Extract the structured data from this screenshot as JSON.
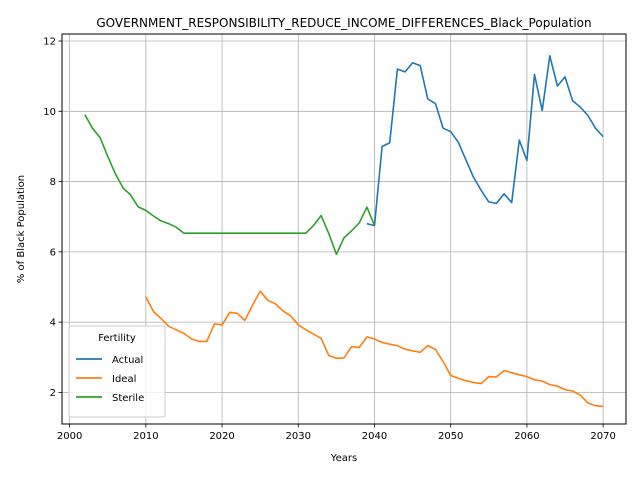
{
  "chart_data": {
    "type": "line",
    "title": "GOVERNMENT_RESPONSIBILITY_REDUCE_INCOME_DIFFERENCES_Black_Population",
    "xlabel": "Years",
    "ylabel": "% of Black Population",
    "xlim": [
      1999,
      2073
    ],
    "ylim": [
      1.1,
      12.2
    ],
    "xticks": [
      2000,
      2010,
      2020,
      2030,
      2040,
      2050,
      2060,
      2070
    ],
    "yticks": [
      2,
      4,
      6,
      8,
      10,
      12
    ],
    "grid": true,
    "legend_title": "Fertility",
    "legend_position": "lower-left",
    "series": [
      {
        "name": "Actual",
        "color": "#1f77b4",
        "x": [
          2039,
          2040,
          2041,
          2042,
          2043,
          2044,
          2045,
          2046,
          2047,
          2048,
          2049,
          2050,
          2051,
          2052,
          2053,
          2054,
          2055,
          2056,
          2057,
          2058,
          2059,
          2060,
          2061,
          2062,
          2063,
          2064,
          2065,
          2066,
          2067,
          2068,
          2069,
          2070
        ],
        "y": [
          6.8,
          6.75,
          9.0,
          9.1,
          11.2,
          11.12,
          11.38,
          11.3,
          10.35,
          10.22,
          9.52,
          9.42,
          9.12,
          8.62,
          8.12,
          7.75,
          7.42,
          7.38,
          7.65,
          7.4,
          9.18,
          8.6,
          11.05,
          10.02,
          11.58,
          10.72,
          10.98,
          10.3,
          10.12,
          9.88,
          9.52,
          9.28
        ]
      },
      {
        "name": "Ideal",
        "color": "#ff7f0e",
        "x": [
          2010,
          2011,
          2012,
          2013,
          2014,
          2015,
          2016,
          2017,
          2018,
          2019,
          2020,
          2021,
          2022,
          2023,
          2024,
          2025,
          2026,
          2027,
          2028,
          2029,
          2030,
          2031,
          2032,
          2033,
          2034,
          2035,
          2036,
          2037,
          2038,
          2039,
          2040,
          2041,
          2042,
          2043,
          2044,
          2045,
          2046,
          2047,
          2048,
          2049,
          2050,
          2051,
          2052,
          2053,
          2054,
          2055,
          2056,
          2057,
          2058,
          2059,
          2060,
          2061,
          2062,
          2063,
          2064,
          2065,
          2066,
          2067,
          2068,
          2069,
          2070
        ],
        "y": [
          4.72,
          4.3,
          4.1,
          3.88,
          3.78,
          3.68,
          3.52,
          3.45,
          3.45,
          3.95,
          3.92,
          4.28,
          4.25,
          4.05,
          4.48,
          4.88,
          4.62,
          4.52,
          4.32,
          4.18,
          3.92,
          3.78,
          3.66,
          3.54,
          3.05,
          2.97,
          2.98,
          3.3,
          3.28,
          3.58,
          3.52,
          3.42,
          3.37,
          3.33,
          3.23,
          3.18,
          3.14,
          3.33,
          3.22,
          2.88,
          2.48,
          2.4,
          2.33,
          2.28,
          2.25,
          2.45,
          2.44,
          2.62,
          2.56,
          2.5,
          2.45,
          2.36,
          2.32,
          2.22,
          2.18,
          2.08,
          2.04,
          1.92,
          1.7,
          1.62,
          1.6
        ]
      },
      {
        "name": "Sterile",
        "color": "#2ca02c",
        "x": [
          2002,
          2003,
          2004,
          2005,
          2006,
          2007,
          2008,
          2009,
          2010,
          2011,
          2012,
          2013,
          2014,
          2015,
          2016,
          2017,
          2018,
          2019,
          2020,
          2021,
          2022,
          2023,
          2024,
          2025,
          2026,
          2027,
          2028,
          2029,
          2030,
          2031,
          2032,
          2033,
          2034,
          2035,
          2036,
          2037,
          2038,
          2039,
          2040
        ],
        "y": [
          9.9,
          9.52,
          9.25,
          8.72,
          8.22,
          7.82,
          7.62,
          7.28,
          7.18,
          7.02,
          6.88,
          6.8,
          6.7,
          6.53,
          6.53,
          6.53,
          6.53,
          6.53,
          6.53,
          6.53,
          6.53,
          6.53,
          6.53,
          6.53,
          6.53,
          6.53,
          6.53,
          6.53,
          6.53,
          6.53,
          6.75,
          7.03,
          6.52,
          5.93,
          6.4,
          6.6,
          6.82,
          7.27,
          6.75
        ]
      }
    ]
  }
}
